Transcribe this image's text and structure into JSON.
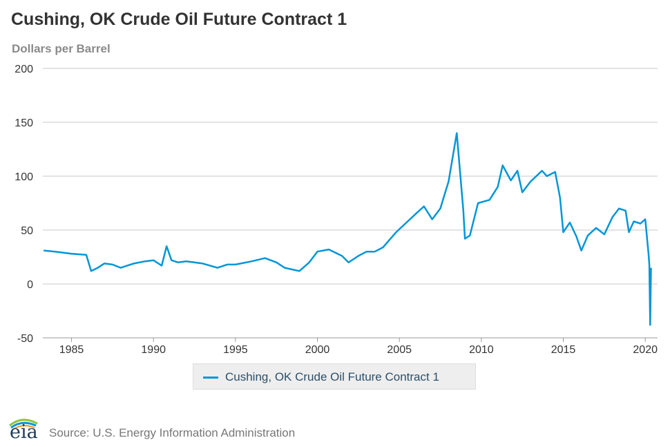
{
  "chart_data": {
    "type": "line",
    "title": "Cushing, OK Crude Oil Future Contract 1",
    "ylabel": "Dollars per Barrel",
    "ylim": [
      -50,
      200
    ],
    "y_ticks": [
      "200",
      "150",
      "100",
      "50",
      "0",
      "-50"
    ],
    "x_range": [
      1983.25,
      2020.75
    ],
    "x_ticks": [
      "1985",
      "1990",
      "1995",
      "2000",
      "2005",
      "2010",
      "2015",
      "2020"
    ],
    "grid": true,
    "legend_position": "bottom",
    "series": [
      {
        "name": "Cushing, OK Crude Oil Future Contract 1",
        "color": "#0096d7",
        "x": [
          1983.3,
          1984.0,
          1985.0,
          1985.9,
          1986.2,
          1986.6,
          1987.0,
          1987.5,
          1988.0,
          1988.8,
          1989.5,
          1990.0,
          1990.5,
          1990.8,
          1991.1,
          1991.5,
          1992.0,
          1993.0,
          1993.9,
          1994.5,
          1995.0,
          1996.0,
          1996.8,
          1997.5,
          1998.0,
          1998.9,
          1999.5,
          2000.0,
          2000.7,
          2001.5,
          2001.9,
          2002.5,
          2003.0,
          2003.5,
          2004.0,
          2004.8,
          2005.5,
          2006.0,
          2006.5,
          2007.0,
          2007.5,
          2008.0,
          2008.5,
          2008.9,
          2009.0,
          2009.3,
          2009.8,
          2010.5,
          2011.0,
          2011.3,
          2011.8,
          2012.2,
          2012.5,
          2013.0,
          2013.7,
          2014.0,
          2014.5,
          2014.8,
          2015.0,
          2015.4,
          2015.8,
          2016.1,
          2016.5,
          2017.0,
          2017.5,
          2018.0,
          2018.4,
          2018.8,
          2019.0,
          2019.3,
          2019.7,
          2020.0,
          2020.2,
          2020.25,
          2020.3,
          2020.35
        ],
        "y": [
          31,
          30,
          28,
          27,
          12,
          15,
          19,
          18,
          15,
          19,
          21,
          22,
          17,
          35,
          22,
          20,
          21,
          19,
          15,
          18,
          18,
          21,
          24,
          20,
          15,
          12,
          20,
          30,
          32,
          26,
          20,
          26,
          30,
          30,
          34,
          48,
          58,
          65,
          72,
          60,
          70,
          95,
          140,
          68,
          42,
          45,
          75,
          78,
          90,
          110,
          96,
          105,
          85,
          95,
          105,
          100,
          104,
          80,
          48,
          57,
          44,
          31,
          45,
          52,
          46,
          62,
          70,
          68,
          48,
          58,
          56,
          60,
          28,
          18,
          -38,
          15
        ]
      }
    ]
  },
  "legend": {
    "label": "Cushing, OK Crude Oil Future Contract 1"
  },
  "branding": {
    "logo_text": "eia"
  },
  "source": "Source: U.S. Energy Information Administration"
}
